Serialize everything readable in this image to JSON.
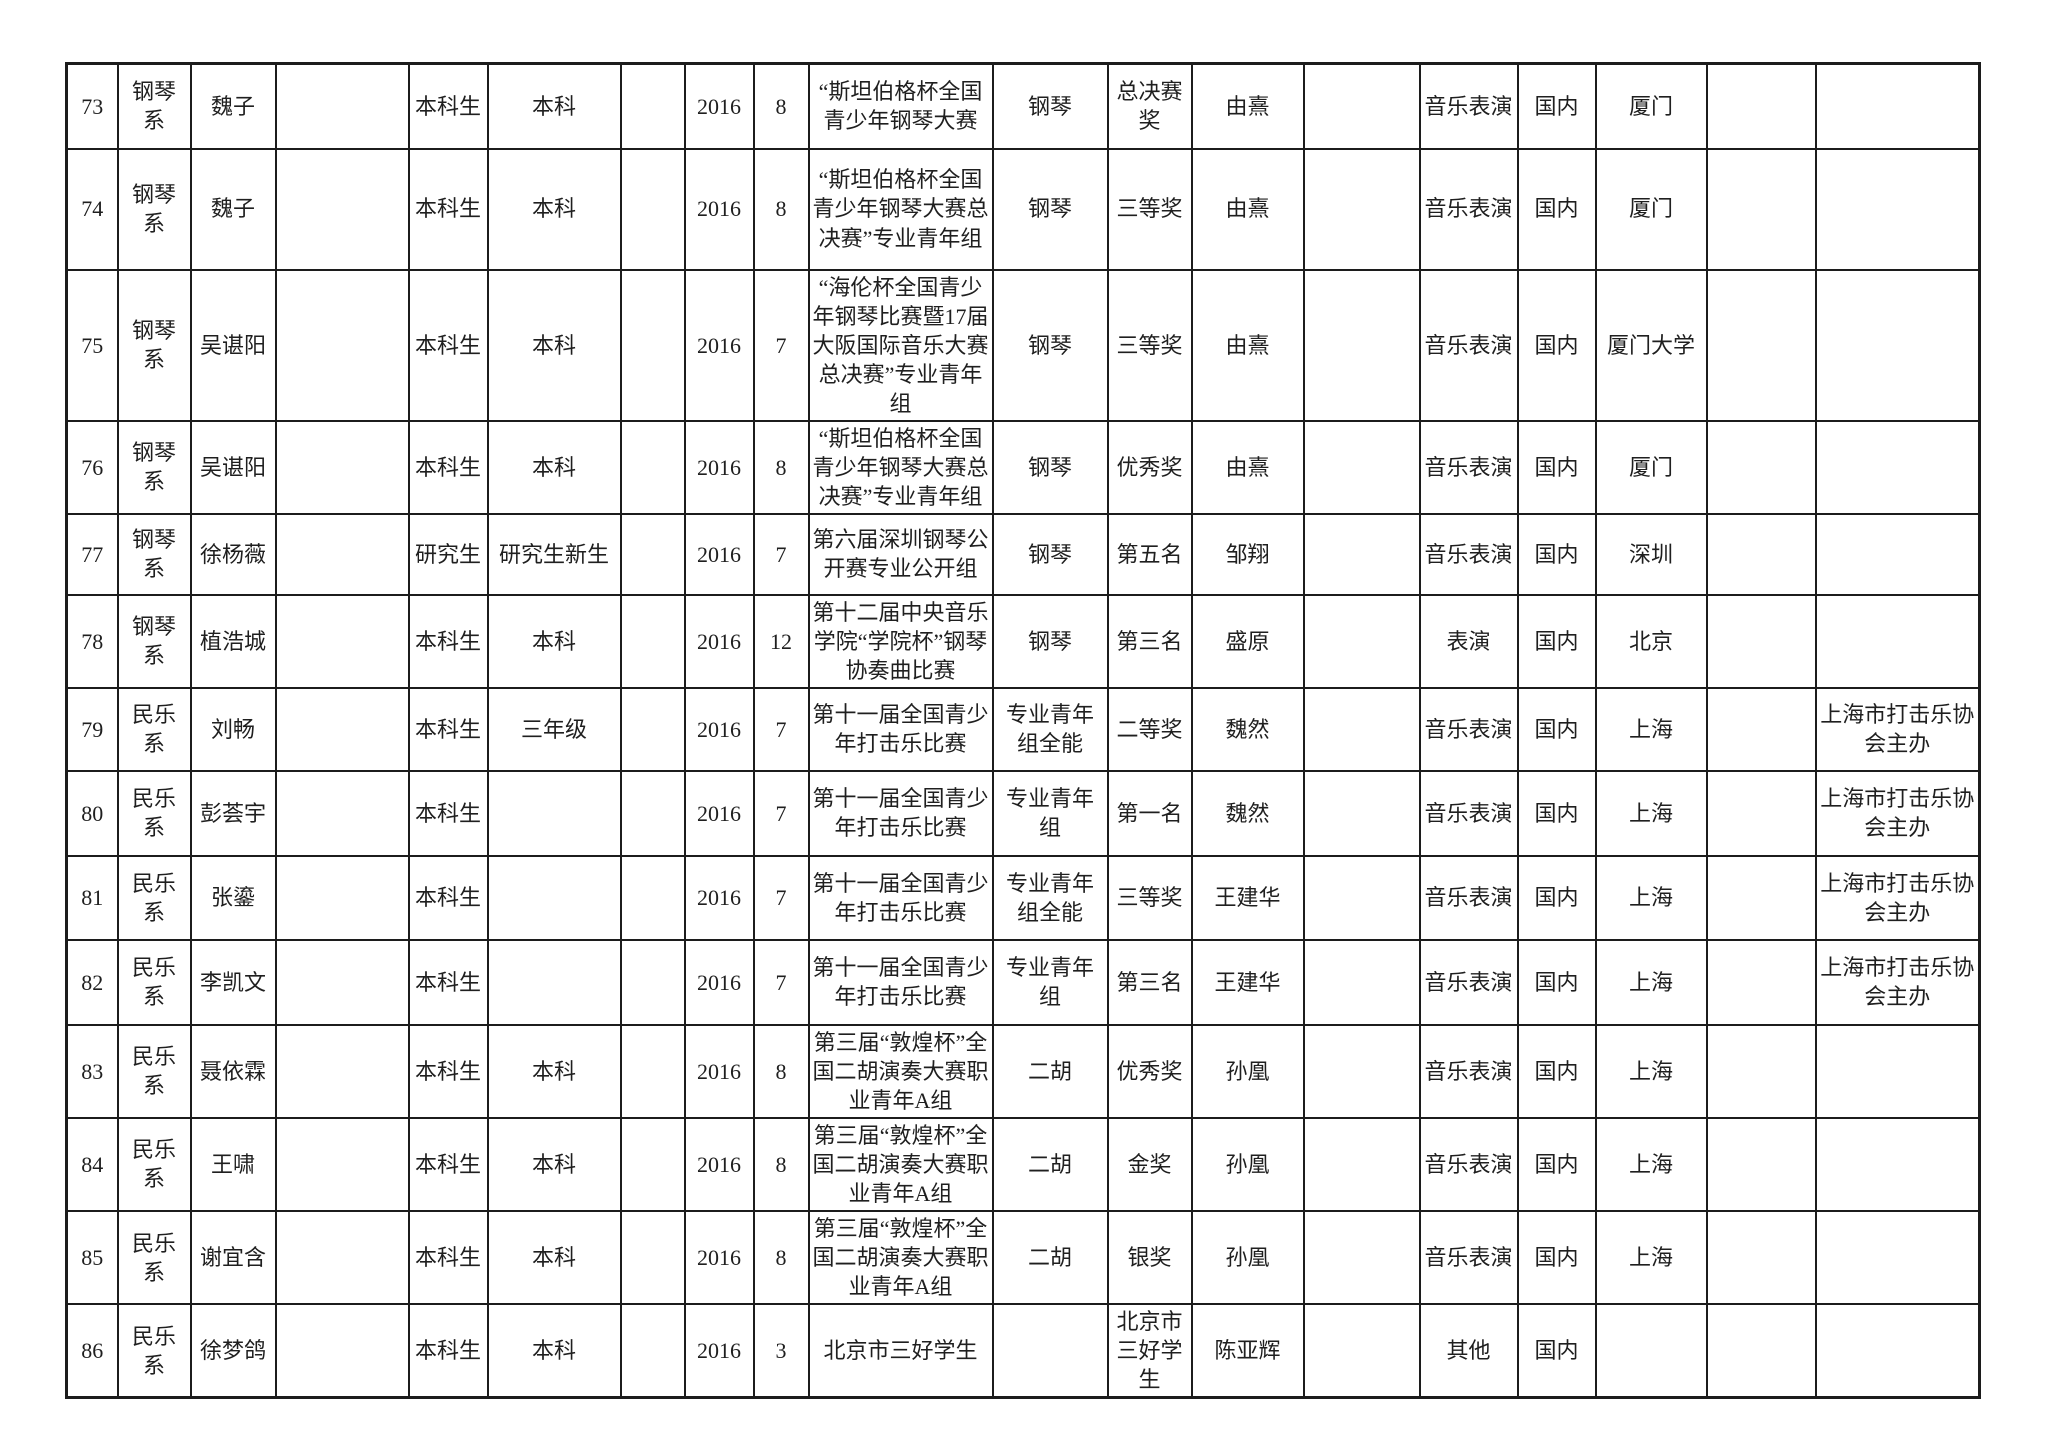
{
  "document": {
    "page_background": "#ffffff",
    "border_color": "#1c1c1c",
    "text_color": "#1f1f1f"
  },
  "table": {
    "description_note": "",
    "rows": [
      [
        "73",
        "钢琴系",
        "魏子",
        "",
        "本科生",
        "本科",
        "",
        "2016",
        "8",
        "“斯坦伯格杯全国青少年钢琴大赛",
        "钢琴",
        "总决赛奖",
        "由熹",
        "",
        "音乐表演",
        "国内",
        "厦门",
        "",
        ""
      ],
      [
        "74",
        "钢琴系",
        "魏子",
        "",
        "本科生",
        "本科",
        "",
        "2016",
        "8",
        "“斯坦伯格杯全国青少年钢琴大赛总决赛”专业青年组",
        "钢琴",
        "三等奖",
        "由熹",
        "",
        "音乐表演",
        "国内",
        "厦门",
        "",
        ""
      ],
      [
        "75",
        "钢琴系",
        "吴谌阳",
        "",
        "本科生",
        "本科",
        "",
        "2016",
        "7",
        "“海伦杯全国青少年钢琴比赛暨17届大阪国际音乐大赛总决赛”专业青年组",
        "钢琴",
        "三等奖",
        "由熹",
        "",
        "音乐表演",
        "国内",
        "厦门大学",
        "",
        ""
      ],
      [
        "76",
        "钢琴系",
        "吴谌阳",
        "",
        "本科生",
        "本科",
        "",
        "2016",
        "8",
        "“斯坦伯格杯全国青少年钢琴大赛总决赛”专业青年组",
        "钢琴",
        "优秀奖",
        "由熹",
        "",
        "音乐表演",
        "国内",
        "厦门",
        "",
        ""
      ],
      [
        "77",
        "钢琴系",
        "徐杨薇",
        "",
        "研究生",
        "研究生新生",
        "",
        "2016",
        "7",
        "第六届深圳钢琴公开赛专业公开组",
        "钢琴",
        "第五名",
        "邹翔",
        "",
        "音乐表演",
        "国内",
        "深圳",
        "",
        ""
      ],
      [
        "78",
        "钢琴系",
        "植浩城",
        "",
        "本科生",
        "本科",
        "",
        "2016",
        "12",
        "第十二届中央音乐学院“学院杯”钢琴协奏曲比赛",
        "钢琴",
        "第三名",
        "盛原",
        "",
        "表演",
        "国内",
        "北京",
        "",
        ""
      ],
      [
        "79",
        "民乐系",
        "刘畅",
        "",
        "本科生",
        "三年级",
        "",
        "2016",
        "7",
        "第十一届全国青少年打击乐比赛",
        "专业青年组全能",
        "二等奖",
        "魏然",
        "",
        "音乐表演",
        "国内",
        "上海",
        "",
        "上海市打击乐协会主办"
      ],
      [
        "80",
        "民乐系",
        "彭荟宇",
        "",
        "本科生",
        "",
        "",
        "2016",
        "7",
        "第十一届全国青少年打击乐比赛",
        "专业青年组",
        "第一名",
        "魏然",
        "",
        "音乐表演",
        "国内",
        "上海",
        "",
        "上海市打击乐协会主办"
      ],
      [
        "81",
        "民乐系",
        "张鎏",
        "",
        "本科生",
        "",
        "",
        "2016",
        "7",
        "第十一届全国青少年打击乐比赛",
        "专业青年组全能",
        "三等奖",
        "王建华",
        "",
        "音乐表演",
        "国内",
        "上海",
        "",
        "上海市打击乐协会主办"
      ],
      [
        "82",
        "民乐系",
        "李凯文",
        "",
        "本科生",
        "",
        "",
        "2016",
        "7",
        "第十一届全国青少年打击乐比赛",
        "专业青年组",
        "第三名",
        "王建华",
        "",
        "音乐表演",
        "国内",
        "上海",
        "",
        "上海市打击乐协会主办"
      ],
      [
        "83",
        "民乐系",
        "聂依霖",
        "",
        "本科生",
        "本科",
        "",
        "2016",
        "8",
        "第三届“敦煌杯”全国二胡演奏大赛职业青年A组",
        "二胡",
        "优秀奖",
        "孙凰",
        "",
        "音乐表演",
        "国内",
        "上海",
        "",
        ""
      ],
      [
        "84",
        "民乐系",
        "王啸",
        "",
        "本科生",
        "本科",
        "",
        "2016",
        "8",
        "第三届“敦煌杯”全国二胡演奏大赛职业青年A组",
        "二胡",
        "金奖",
        "孙凰",
        "",
        "音乐表演",
        "国内",
        "上海",
        "",
        ""
      ],
      [
        "85",
        "民乐系",
        "谢宜含",
        "",
        "本科生",
        "本科",
        "",
        "2016",
        "8",
        "第三届“敦煌杯”全国二胡演奏大赛职业青年A组",
        "二胡",
        "银奖",
        "孙凰",
        "",
        "音乐表演",
        "国内",
        "上海",
        "",
        ""
      ],
      [
        "86",
        "民乐系",
        "徐梦鸽",
        "",
        "本科生",
        "本科",
        "",
        "2016",
        "3",
        "北京市三好学生",
        "",
        "北京市三好学生",
        "陈亚辉",
        "",
        "其他",
        "国内",
        "",
        "",
        ""
      ]
    ]
  }
}
